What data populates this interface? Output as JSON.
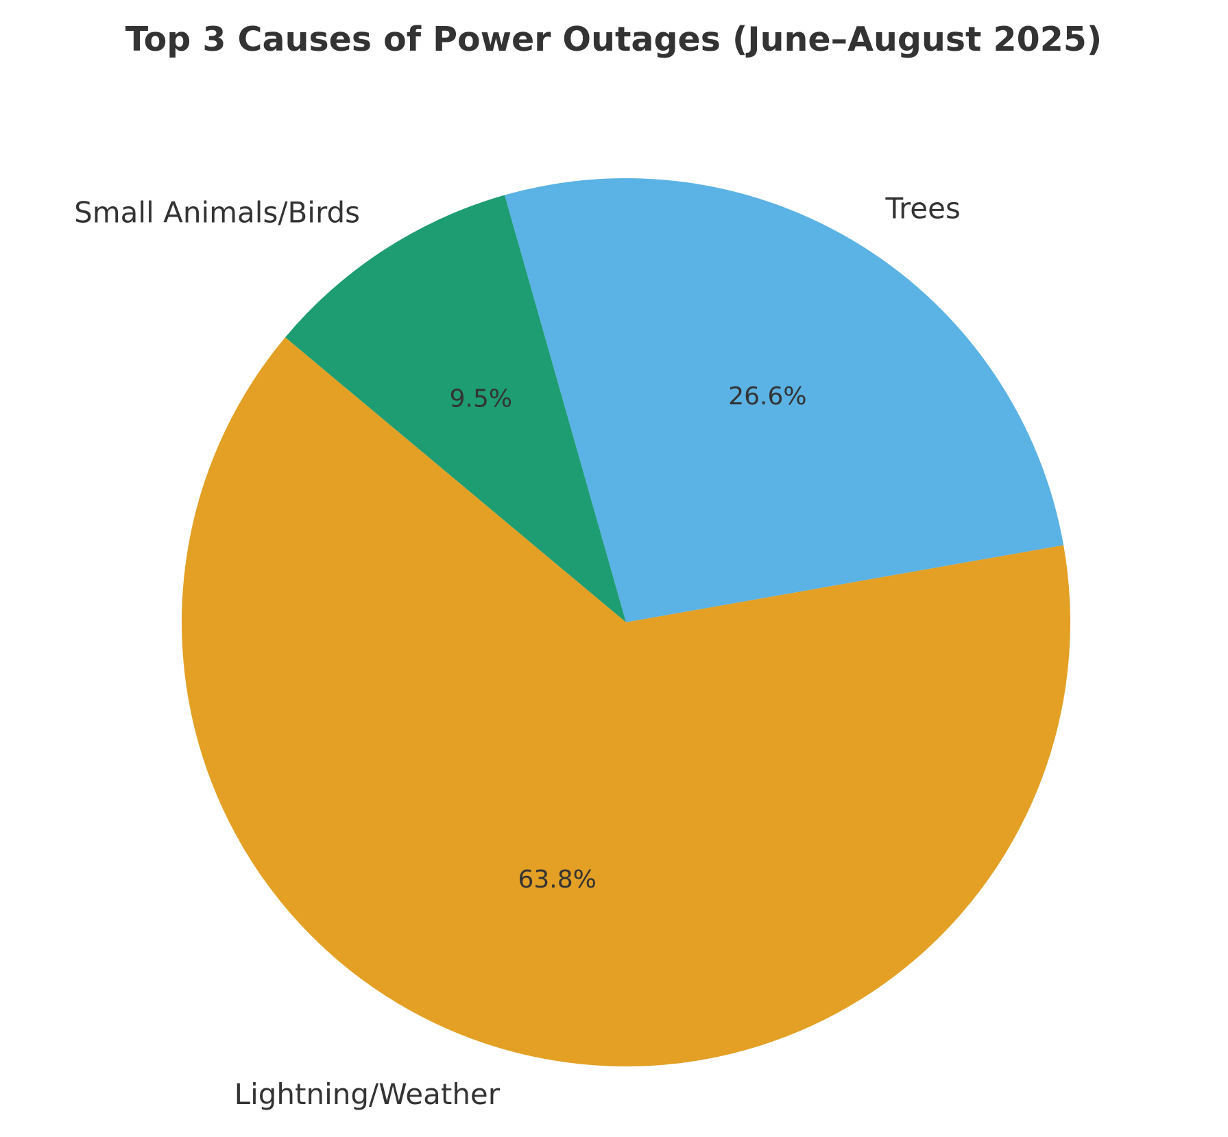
{
  "chart_data": {
    "type": "pie",
    "title": "Top 3 Causes of Power Outages (June–August 2025)",
    "categories": [
      "Trees",
      "Small Animals/Birds",
      "Lightning/Weather"
    ],
    "values": [
      26.6,
      9.5,
      63.8
    ],
    "value_labels": [
      "26.6%",
      "9.5%",
      "63.8%"
    ],
    "colors": [
      "#5BB2E4",
      "#1E9D72",
      "#E3A024"
    ],
    "start_angle_deg": 10,
    "direction": "counterclockwise",
    "legend": "none"
  }
}
